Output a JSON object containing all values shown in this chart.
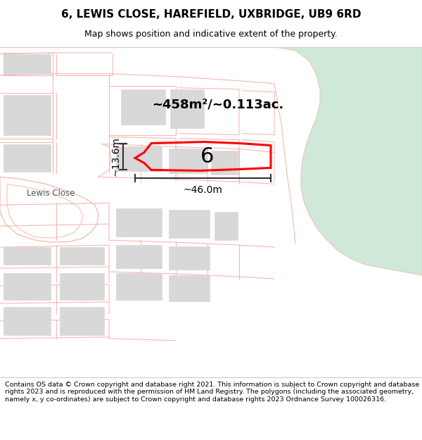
{
  "title": "6, LEWIS CLOSE, HAREFIELD, UXBRIDGE, UB9 6RD",
  "subtitle": "Map shows position and indicative extent of the property.",
  "footer": "Contains OS data © Crown copyright and database right 2021. This information is subject to Crown copyright and database rights 2023 and is reproduced with the permission of HM Land Registry. The polygons (including the associated geometry, namely x, y co-ordinates) are subject to Crown copyright and database rights 2023 Ordnance Survey 100026316.",
  "area_label": "~458m²/~0.113ac.",
  "width_label": "~46.0m",
  "height_label": "~13.6m",
  "number_label": "6",
  "map_bg": "#ffffff",
  "road_color": "#f5b8b0",
  "green_color": "#d0e8d8",
  "green_edge": "#e8c8c0",
  "highlight_color": "#ff0000",
  "building_fill": "#d8d8d8",
  "building_edge": "#d8d8d8"
}
